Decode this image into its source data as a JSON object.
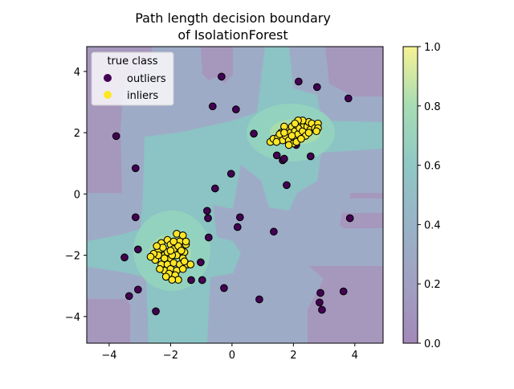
{
  "chart_data": {
    "type": "scatter",
    "title": "Path length decision boundary\nof IsolationForest",
    "title_lines": [
      "Path length decision boundary",
      "of IsolationForest"
    ],
    "xlim": [
      -4.73,
      4.92
    ],
    "ylim": [
      -4.87,
      4.81
    ],
    "xticks": [
      -4,
      -2,
      0,
      2,
      4
    ],
    "yticks": [
      -4,
      -2,
      0,
      2,
      4
    ],
    "grid": false,
    "background": "filled contour of path-length score (viridis, alpha 0.5)",
    "colorbar": {
      "min": 0.0,
      "max": 1.0,
      "ticks": [
        "0.0",
        "0.2",
        "0.4",
        "0.6",
        "0.8",
        "1.0"
      ],
      "colormap": "viridis"
    },
    "legend": {
      "title": "true class",
      "placement": "top-left",
      "entries": [
        {
          "label": "outliers",
          "color": "#440154"
        },
        {
          "label": "inliers",
          "color": "#fde725"
        }
      ]
    },
    "series": [
      {
        "name": "outliers",
        "color": "#440154",
        "points": [
          [
            -0.34,
            3.83
          ],
          [
            -0.63,
            2.86
          ],
          [
            0.13,
            2.76
          ],
          [
            -3.77,
            1.89
          ],
          [
            -3.14,
            0.84
          ],
          [
            -0.55,
            0.18
          ],
          [
            -0.03,
            0.66
          ],
          [
            2.17,
            3.67
          ],
          [
            2.77,
            3.49
          ],
          [
            3.79,
            3.12
          ],
          [
            0.71,
            1.97
          ],
          [
            1.46,
            1.26
          ],
          [
            1.65,
            1.1
          ],
          [
            1.7,
            1.15
          ],
          [
            2.56,
            1.23
          ],
          [
            1.78,
            0.29
          ],
          [
            2.09,
            1.6
          ],
          [
            3.84,
            -0.79
          ],
          [
            -3.14,
            -0.76
          ],
          [
            -0.81,
            -0.55
          ],
          [
            -0.78,
            -0.79
          ],
          [
            0.26,
            -0.76
          ],
          [
            0.18,
            -1.08
          ],
          [
            1.36,
            -1.23
          ],
          [
            -0.76,
            -1.42
          ],
          [
            -3.5,
            -2.07
          ],
          [
            -3.06,
            -1.81
          ],
          [
            -1.02,
            -2.23
          ],
          [
            -1.33,
            -2.81
          ],
          [
            -0.97,
            -2.81
          ],
          [
            -2.07,
            -2.26
          ],
          [
            -0.26,
            -3.07
          ],
          [
            0.89,
            -3.44
          ],
          [
            -3.35,
            -3.33
          ],
          [
            -3.06,
            -3.12
          ],
          [
            -2.48,
            -3.83
          ],
          [
            2.88,
            -3.23
          ],
          [
            2.85,
            -3.54
          ],
          [
            2.93,
            -3.78
          ],
          [
            3.63,
            -3.18
          ]
        ]
      },
      {
        "name": "inliers",
        "color": "#fde725",
        "points": [
          [
            -2.1,
            -1.5
          ],
          [
            -1.8,
            -1.3
          ],
          [
            -1.6,
            -1.35
          ],
          [
            -2.4,
            -1.85
          ],
          [
            -2.3,
            -1.6
          ],
          [
            -2.0,
            -1.65
          ],
          [
            -1.7,
            -1.55
          ],
          [
            -1.5,
            -1.65
          ],
          [
            -1.55,
            -1.9
          ],
          [
            -1.9,
            -1.8
          ],
          [
            -2.2,
            -2.0
          ],
          [
            -2.0,
            -2.1
          ],
          [
            -1.8,
            -2.0
          ],
          [
            -1.6,
            -2.1
          ],
          [
            -2.5,
            -2.15
          ],
          [
            -2.3,
            -2.3
          ],
          [
            -2.1,
            -2.3
          ],
          [
            -1.9,
            -2.25
          ],
          [
            -1.7,
            -2.3
          ],
          [
            -1.45,
            -2.3
          ],
          [
            -2.2,
            -2.5
          ],
          [
            -2.0,
            -2.45
          ],
          [
            -1.8,
            -2.5
          ],
          [
            -1.6,
            -2.45
          ],
          [
            -2.4,
            -2.0
          ],
          [
            -2.55,
            -1.95
          ],
          [
            -2.1,
            -1.9
          ],
          [
            -1.95,
            -2.0
          ],
          [
            -1.75,
            -1.7
          ],
          [
            -2.25,
            -1.75
          ],
          [
            -2.05,
            -2.6
          ],
          [
            -1.85,
            -2.65
          ],
          [
            -1.35,
            -2.3
          ],
          [
            -2.2,
            -2.1
          ],
          [
            -1.9,
            -1.55
          ],
          [
            -2.35,
            -2.45
          ],
          [
            -1.65,
            -1.85
          ],
          [
            -1.55,
            -2.2
          ],
          [
            -2.0,
            -1.85
          ],
          [
            -2.15,
            -2.7
          ],
          [
            -1.75,
            -2.8
          ],
          [
            -1.95,
            -2.8
          ],
          [
            -2.45,
            -1.7
          ],
          [
            -2.65,
            -2.05
          ],
          [
            -1.5,
            -1.55
          ],
          [
            1.25,
            1.7
          ],
          [
            1.35,
            1.8
          ],
          [
            1.5,
            1.85
          ],
          [
            1.6,
            2.0
          ],
          [
            1.65,
            1.75
          ],
          [
            1.75,
            1.9
          ],
          [
            1.8,
            2.1
          ],
          [
            1.85,
            1.75
          ],
          [
            1.9,
            2.0
          ],
          [
            1.95,
            2.2
          ],
          [
            2.0,
            1.85
          ],
          [
            2.05,
            2.05
          ],
          [
            2.1,
            2.25
          ],
          [
            2.15,
            1.95
          ],
          [
            2.2,
            2.15
          ],
          [
            2.25,
            2.35
          ],
          [
            2.3,
            2.05
          ],
          [
            2.35,
            2.25
          ],
          [
            2.4,
            1.9
          ],
          [
            2.45,
            2.2
          ],
          [
            2.5,
            2.35
          ],
          [
            2.55,
            2.1
          ],
          [
            2.6,
            2.3
          ],
          [
            2.7,
            2.15
          ],
          [
            2.8,
            2.3
          ],
          [
            2.8,
            2.15
          ],
          [
            2.75,
            2.05
          ],
          [
            1.7,
            2.2
          ],
          [
            1.55,
            1.95
          ],
          [
            2.0,
            1.65
          ],
          [
            1.85,
            1.6
          ],
          [
            2.1,
            1.7
          ],
          [
            2.3,
            2.4
          ],
          [
            1.45,
            1.7
          ],
          [
            2.15,
            2.4
          ],
          [
            1.7,
            2.0
          ],
          [
            2.25,
            1.8
          ],
          [
            1.95,
            1.9
          ],
          [
            2.05,
            2.3
          ],
          [
            2.5,
            2.0
          ]
        ]
      }
    ]
  }
}
